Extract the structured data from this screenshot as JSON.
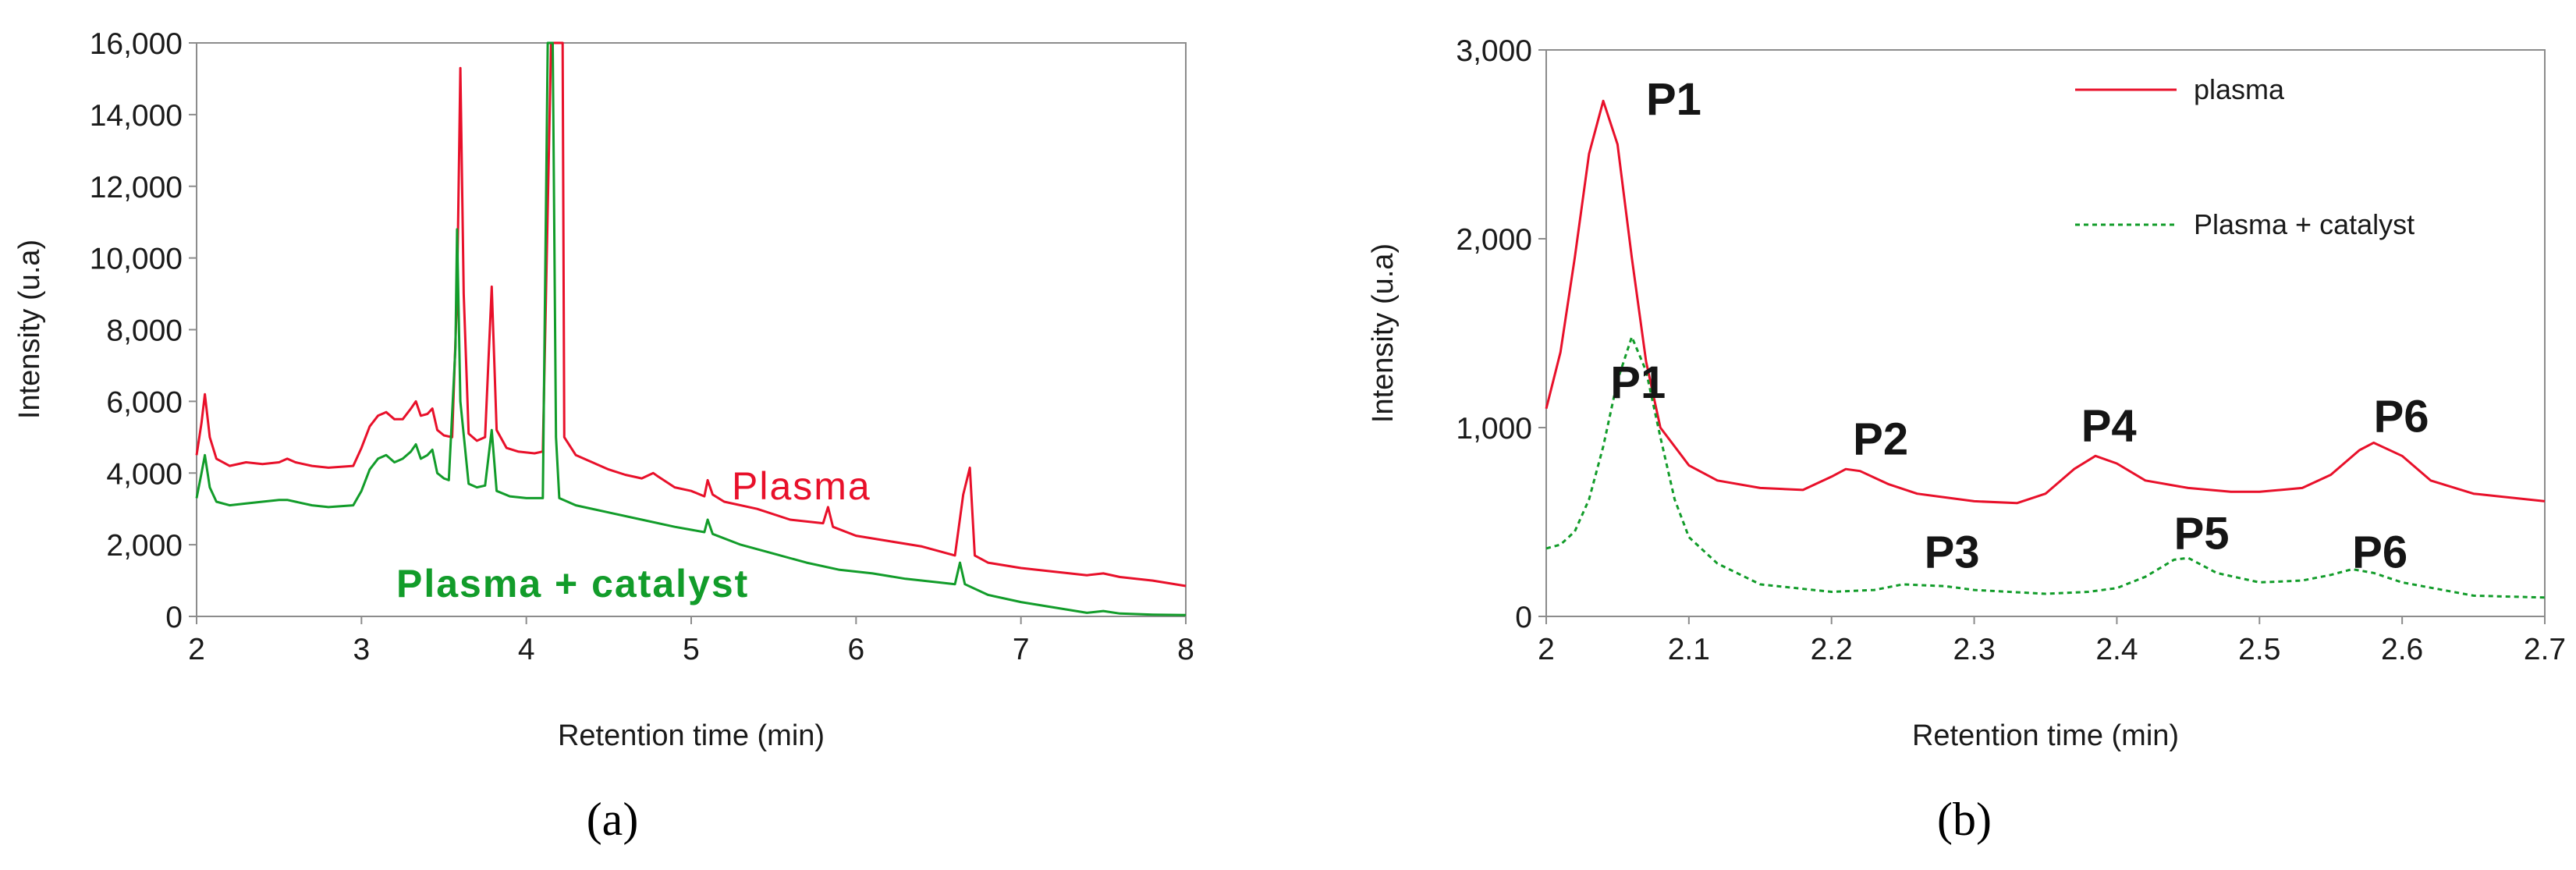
{
  "colors": {
    "red": "#e8102a",
    "green": "#129c2a",
    "axis": "#8c8c8c"
  },
  "chart_data": [
    {
      "id": "a",
      "type": "line",
      "panel_label": "(a)",
      "xlabel": "Retention time (min)",
      "ylabel": "Intensity (u.a)",
      "xlim": [
        2,
        8
      ],
      "ylim": [
        0,
        16000
      ],
      "xticks": [
        "2",
        "3",
        "4",
        "5",
        "6",
        "7",
        "8"
      ],
      "yticks": [
        "0",
        "2,000",
        "4,000",
        "6,000",
        "8,000",
        "10,000",
        "12,000",
        "14,000",
        "16,000"
      ],
      "annotations": [
        {
          "text": "Plasma",
          "x": 5.3,
          "y": 3400,
          "color": "red"
        },
        {
          "text": "Plasma + catalyst",
          "x": 3.2,
          "y": 600,
          "color": "green"
        }
      ],
      "series": [
        {
          "name": "Plasma",
          "color": "red",
          "style": "solid",
          "points": [
            [
              2.0,
              4500
            ],
            [
              2.03,
              5400
            ],
            [
              2.05,
              6200
            ],
            [
              2.08,
              5000
            ],
            [
              2.12,
              4400
            ],
            [
              2.2,
              4200
            ],
            [
              2.3,
              4300
            ],
            [
              2.4,
              4250
            ],
            [
              2.5,
              4300
            ],
            [
              2.55,
              4400
            ],
            [
              2.6,
              4300
            ],
            [
              2.7,
              4200
            ],
            [
              2.8,
              4150
            ],
            [
              2.95,
              4200
            ],
            [
              3.0,
              4700
            ],
            [
              3.05,
              5300
            ],
            [
              3.1,
              5600
            ],
            [
              3.15,
              5700
            ],
            [
              3.2,
              5500
            ],
            [
              3.25,
              5500
            ],
            [
              3.3,
              5800
            ],
            [
              3.33,
              6000
            ],
            [
              3.36,
              5600
            ],
            [
              3.4,
              5650
            ],
            [
              3.43,
              5800
            ],
            [
              3.46,
              5200
            ],
            [
              3.5,
              5050
            ],
            [
              3.55,
              5000
            ],
            [
              3.58,
              9000
            ],
            [
              3.6,
              15300
            ],
            [
              3.62,
              9000
            ],
            [
              3.65,
              5100
            ],
            [
              3.7,
              4900
            ],
            [
              3.75,
              5000
            ],
            [
              3.79,
              9200
            ],
            [
              3.82,
              5200
            ],
            [
              3.88,
              4700
            ],
            [
              3.95,
              4600
            ],
            [
              4.05,
              4550
            ],
            [
              4.1,
              4600
            ],
            [
              4.15,
              16000
            ],
            [
              4.18,
              16000
            ],
            [
              4.2,
              16000
            ],
            [
              4.22,
              16000
            ],
            [
              4.23,
              5000
            ],
            [
              4.3,
              4500
            ],
            [
              4.4,
              4300
            ],
            [
              4.5,
              4100
            ],
            [
              4.6,
              3950
            ],
            [
              4.7,
              3850
            ],
            [
              4.77,
              4000
            ],
            [
              4.8,
              3900
            ],
            [
              4.9,
              3600
            ],
            [
              5.0,
              3500
            ],
            [
              5.08,
              3350
            ],
            [
              5.1,
              3800
            ],
            [
              5.13,
              3400
            ],
            [
              5.2,
              3200
            ],
            [
              5.4,
              3000
            ],
            [
              5.6,
              2700
            ],
            [
              5.8,
              2600
            ],
            [
              5.83,
              3050
            ],
            [
              5.86,
              2500
            ],
            [
              6.0,
              2250
            ],
            [
              6.2,
              2100
            ],
            [
              6.4,
              1950
            ],
            [
              6.6,
              1700
            ],
            [
              6.65,
              3400
            ],
            [
              6.69,
              4150
            ],
            [
              6.72,
              1700
            ],
            [
              6.8,
              1500
            ],
            [
              7.0,
              1350
            ],
            [
              7.2,
              1250
            ],
            [
              7.4,
              1150
            ],
            [
              7.5,
              1200
            ],
            [
              7.6,
              1100
            ],
            [
              7.8,
              1000
            ],
            [
              8.0,
              850
            ]
          ]
        },
        {
          "name": "Plasma + catalyst",
          "color": "green",
          "style": "solid",
          "points": [
            [
              2.0,
              3300
            ],
            [
              2.03,
              4000
            ],
            [
              2.05,
              4500
            ],
            [
              2.08,
              3600
            ],
            [
              2.12,
              3200
            ],
            [
              2.2,
              3100
            ],
            [
              2.3,
              3150
            ],
            [
              2.4,
              3200
            ],
            [
              2.5,
              3250
            ],
            [
              2.55,
              3250
            ],
            [
              2.6,
              3200
            ],
            [
              2.7,
              3100
            ],
            [
              2.8,
              3050
            ],
            [
              2.95,
              3100
            ],
            [
              3.0,
              3500
            ],
            [
              3.05,
              4100
            ],
            [
              3.1,
              4400
            ],
            [
              3.15,
              4500
            ],
            [
              3.2,
              4300
            ],
            [
              3.25,
              4400
            ],
            [
              3.3,
              4600
            ],
            [
              3.33,
              4800
            ],
            [
              3.36,
              4400
            ],
            [
              3.4,
              4500
            ],
            [
              3.43,
              4650
            ],
            [
              3.46,
              4000
            ],
            [
              3.5,
              3850
            ],
            [
              3.53,
              3800
            ],
            [
              3.57,
              7500
            ],
            [
              3.58,
              10800
            ],
            [
              3.6,
              6000
            ],
            [
              3.65,
              3700
            ],
            [
              3.7,
              3600
            ],
            [
              3.75,
              3650
            ],
            [
              3.79,
              5200
            ],
            [
              3.82,
              3500
            ],
            [
              3.9,
              3350
            ],
            [
              4.0,
              3300
            ],
            [
              4.1,
              3300
            ],
            [
              4.13,
              16000
            ],
            [
              4.16,
              16000
            ],
            [
              4.18,
              5000
            ],
            [
              4.2,
              3300
            ],
            [
              4.3,
              3100
            ],
            [
              4.5,
              2900
            ],
            [
              4.7,
              2700
            ],
            [
              4.9,
              2500
            ],
            [
              5.08,
              2350
            ],
            [
              5.1,
              2700
            ],
            [
              5.13,
              2300
            ],
            [
              5.3,
              2000
            ],
            [
              5.5,
              1750
            ],
            [
              5.7,
              1500
            ],
            [
              5.9,
              1300
            ],
            [
              6.1,
              1200
            ],
            [
              6.3,
              1050
            ],
            [
              6.5,
              950
            ],
            [
              6.6,
              900
            ],
            [
              6.63,
              1500
            ],
            [
              6.66,
              900
            ],
            [
              6.8,
              600
            ],
            [
              7.0,
              400
            ],
            [
              7.2,
              250
            ],
            [
              7.4,
              100
            ],
            [
              7.5,
              150
            ],
            [
              7.6,
              80
            ],
            [
              7.8,
              50
            ],
            [
              8.0,
              40
            ]
          ]
        }
      ]
    },
    {
      "id": "b",
      "type": "line",
      "panel_label": "(b)",
      "xlabel": "Retention time (min)",
      "ylabel": "Intensity (u.a)",
      "xlim": [
        2,
        2.7
      ],
      "ylim": [
        0,
        3000
      ],
      "xticks": [
        "2",
        "2.1",
        "2.2",
        "2.3",
        "2.4",
        "2.5",
        "2.6",
        "2.7"
      ],
      "yticks": [
        "0",
        "1,000",
        "2,000",
        "3,000"
      ],
      "legend": {
        "position": "top-right",
        "entries": [
          {
            "label": "plasma",
            "color": "red",
            "style": "solid"
          },
          {
            "label": "Plasma + catalyst",
            "color": "green",
            "style": "dotted"
          }
        ]
      },
      "peak_labels": [
        {
          "text": "P1",
          "x": 2.07,
          "y": 2600
        },
        {
          "text": "P1",
          "x": 2.045,
          "y": 1100
        },
        {
          "text": "P2",
          "x": 2.215,
          "y": 800
        },
        {
          "text": "P3",
          "x": 2.265,
          "y": 200
        },
        {
          "text": "P4",
          "x": 2.375,
          "y": 870
        },
        {
          "text": "P5",
          "x": 2.44,
          "y": 300
        },
        {
          "text": "P6",
          "x": 2.58,
          "y": 920
        },
        {
          "text": "P6",
          "x": 2.565,
          "y": 200
        }
      ],
      "series": [
        {
          "name": "plasma",
          "color": "red",
          "style": "solid",
          "points": [
            [
              2.0,
              1100
            ],
            [
              2.01,
              1400
            ],
            [
              2.02,
              1900
            ],
            [
              2.03,
              2450
            ],
            [
              2.04,
              2730
            ],
            [
              2.05,
              2500
            ],
            [
              2.06,
              1900
            ],
            [
              2.07,
              1350
            ],
            [
              2.08,
              1000
            ],
            [
              2.1,
              800
            ],
            [
              2.12,
              720
            ],
            [
              2.15,
              680
            ],
            [
              2.18,
              670
            ],
            [
              2.2,
              740
            ],
            [
              2.21,
              780
            ],
            [
              2.22,
              770
            ],
            [
              2.24,
              700
            ],
            [
              2.26,
              650
            ],
            [
              2.3,
              610
            ],
            [
              2.33,
              600
            ],
            [
              2.35,
              650
            ],
            [
              2.37,
              780
            ],
            [
              2.385,
              850
            ],
            [
              2.4,
              810
            ],
            [
              2.42,
              720
            ],
            [
              2.45,
              680
            ],
            [
              2.48,
              660
            ],
            [
              2.5,
              660
            ],
            [
              2.53,
              680
            ],
            [
              2.55,
              750
            ],
            [
              2.57,
              880
            ],
            [
              2.58,
              920
            ],
            [
              2.6,
              850
            ],
            [
              2.62,
              720
            ],
            [
              2.65,
              650
            ],
            [
              2.7,
              610
            ]
          ]
        },
        {
          "name": "Plasma + catalyst",
          "color": "green",
          "style": "dotted",
          "points": [
            [
              2.0,
              360
            ],
            [
              2.01,
              380
            ],
            [
              2.02,
              450
            ],
            [
              2.03,
              620
            ],
            [
              2.04,
              900
            ],
            [
              2.05,
              1250
            ],
            [
              2.06,
              1480
            ],
            [
              2.07,
              1300
            ],
            [
              2.08,
              950
            ],
            [
              2.09,
              620
            ],
            [
              2.1,
              420
            ],
            [
              2.12,
              280
            ],
            [
              2.15,
              170
            ],
            [
              2.2,
              130
            ],
            [
              2.23,
              140
            ],
            [
              2.25,
              170
            ],
            [
              2.28,
              160
            ],
            [
              2.3,
              140
            ],
            [
              2.35,
              120
            ],
            [
              2.38,
              130
            ],
            [
              2.4,
              150
            ],
            [
              2.42,
              210
            ],
            [
              2.44,
              300
            ],
            [
              2.45,
              310
            ],
            [
              2.47,
              230
            ],
            [
              2.5,
              180
            ],
            [
              2.53,
              190
            ],
            [
              2.55,
              220
            ],
            [
              2.565,
              250
            ],
            [
              2.58,
              230
            ],
            [
              2.6,
              180
            ],
            [
              2.65,
              110
            ],
            [
              2.7,
              100
            ]
          ]
        }
      ]
    }
  ]
}
